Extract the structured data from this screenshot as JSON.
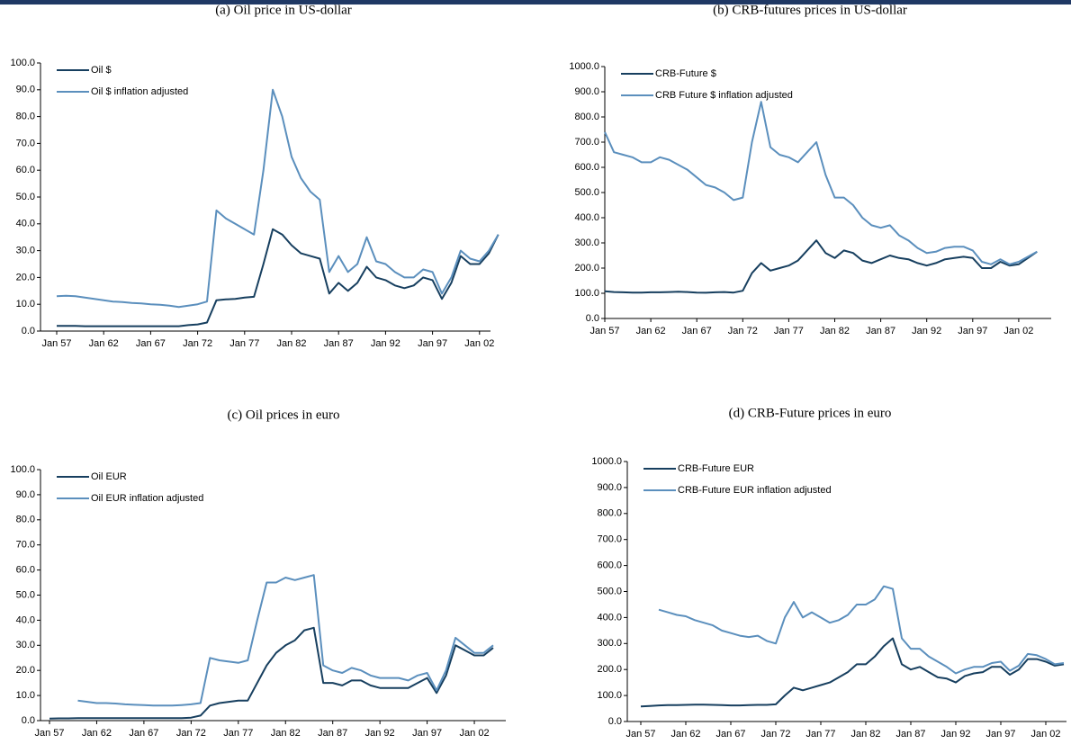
{
  "chart_data": [
    {
      "type": "line",
      "title": "(a) Oil price in US-dollar",
      "legend": "upper left",
      "categories": [
        "Jan 57",
        null,
        null,
        null,
        null,
        "Jan 62",
        null,
        null,
        null,
        null,
        "Jan 67",
        null,
        null,
        null,
        null,
        "Jan 72",
        null,
        null,
        null,
        null,
        "Jan 77",
        null,
        null,
        null,
        null,
        "Jan 82",
        null,
        null,
        null,
        null,
        "Jan 87",
        null,
        null,
        null,
        null,
        "Jan 92",
        null,
        null,
        null,
        null,
        "Jan 97",
        null,
        null,
        null,
        null,
        "Jan 02",
        null,
        null
      ],
      "ylim": [
        0,
        100
      ],
      "yticks": [
        {
          "value": 0,
          "label": "0.0"
        },
        {
          "value": 10,
          "label": "10.0"
        },
        {
          "value": 20,
          "label": "20.0"
        },
        {
          "value": 30,
          "label": "30.0"
        },
        {
          "value": 40,
          "label": "40.0"
        },
        {
          "value": 50,
          "label": "50.0"
        },
        {
          "value": 60,
          "label": "60.0"
        },
        {
          "value": 70,
          "label": "70.0"
        },
        {
          "value": 80,
          "label": "80.0"
        },
        {
          "value": 90,
          "label": "90.0"
        },
        {
          "value": 100,
          "label": "100.0"
        }
      ],
      "series": [
        {
          "name": "Oil $",
          "color": "#173f5f",
          "values": [
            1.9,
            1.9,
            1.9,
            1.8,
            1.8,
            1.8,
            1.8,
            1.8,
            1.8,
            1.8,
            1.8,
            1.8,
            1.8,
            1.8,
            2.2,
            2.5,
            3.2,
            11.5,
            11.8,
            12,
            12.5,
            12.8,
            25,
            38,
            36,
            32,
            29,
            28,
            27,
            14,
            18,
            15,
            18,
            24,
            20,
            19,
            17,
            16,
            17,
            20,
            19,
            12,
            18,
            28,
            25,
            25,
            29,
            36
          ]
        },
        {
          "name": "Oil $ inflation adjusted",
          "color": "#5b8fbd",
          "values": [
            13,
            13.2,
            13,
            12.5,
            12,
            11.5,
            11,
            10.8,
            10.5,
            10.3,
            10,
            9.8,
            9.5,
            9,
            9.5,
            10,
            11,
            45,
            42,
            40,
            38,
            36,
            60,
            90,
            80,
            65,
            57,
            52,
            49,
            22,
            28,
            22,
            25,
            35,
            26,
            25,
            22,
            20,
            20,
            23,
            22,
            14,
            20,
            30,
            27,
            26,
            30,
            36
          ]
        }
      ]
    },
    {
      "type": "line",
      "title": "(b) CRB-futures prices in US-dollar",
      "legend": "upper left",
      "categories": [
        "Jan 57",
        null,
        null,
        null,
        null,
        "Jan 62",
        null,
        null,
        null,
        null,
        "Jan 67",
        null,
        null,
        null,
        null,
        "Jan 72",
        null,
        null,
        null,
        null,
        "Jan 77",
        null,
        null,
        null,
        null,
        "Jan 82",
        null,
        null,
        null,
        null,
        "Jan 87",
        null,
        null,
        null,
        null,
        "Jan 92",
        null,
        null,
        null,
        null,
        "Jan 97",
        null,
        null,
        null,
        null,
        "Jan 02",
        null,
        null
      ],
      "ylim": [
        0,
        1000
      ],
      "yticks": [
        {
          "value": 0,
          "label": "0.0"
        },
        {
          "value": 100,
          "label": "100.0"
        },
        {
          "value": 200,
          "label": "200.0"
        },
        {
          "value": 300,
          "label": "300.0"
        },
        {
          "value": 400,
          "label": "400.0"
        },
        {
          "value": 500,
          "label": "500.0"
        },
        {
          "value": 600,
          "label": "600.0"
        },
        {
          "value": 700,
          "label": "700.0"
        },
        {
          "value": 800,
          "label": "800.0"
        },
        {
          "value": 900,
          "label": "900.0"
        },
        {
          "value": 1000,
          "label": "1000.0"
        }
      ],
      "series": [
        {
          "name": "CRB-Future $",
          "color": "#173f5f",
          "values": [
            108,
            105,
            104,
            103,
            103,
            104,
            104,
            105,
            106,
            105,
            103,
            102,
            104,
            105,
            103,
            110,
            180,
            220,
            190,
            200,
            210,
            230,
            270,
            310,
            260,
            240,
            270,
            260,
            230,
            220,
            235,
            250,
            240,
            235,
            220,
            210,
            220,
            235,
            240,
            245,
            240,
            200,
            200,
            225,
            210,
            215,
            240,
            265
          ]
        },
        {
          "name": "CRB Future $ inflation adjusted",
          "color": "#5b8fbd",
          "values": [
            740,
            660,
            650,
            640,
            620,
            620,
            640,
            630,
            610,
            590,
            560,
            530,
            520,
            500,
            470,
            480,
            700,
            860,
            680,
            650,
            640,
            620,
            660,
            700,
            570,
            480,
            480,
            450,
            400,
            370,
            360,
            370,
            330,
            310,
            280,
            260,
            265,
            280,
            285,
            285,
            270,
            225,
            215,
            235,
            215,
            225,
            245,
            265
          ]
        }
      ]
    },
    {
      "type": "line",
      "title": "(c) Oil prices in euro",
      "legend": "upper left",
      "categories": [
        "Jan 57",
        null,
        null,
        null,
        null,
        "Jan 62",
        null,
        null,
        null,
        null,
        "Jan 67",
        null,
        null,
        null,
        null,
        "Jan 72",
        null,
        null,
        null,
        null,
        "Jan 77",
        null,
        null,
        null,
        null,
        "Jan 82",
        null,
        null,
        null,
        null,
        "Jan 87",
        null,
        null,
        null,
        null,
        "Jan 92",
        null,
        null,
        null,
        null,
        "Jan 97",
        null,
        null,
        null,
        null,
        "Jan 02",
        null,
        null
      ],
      "ylim": [
        0,
        100
      ],
      "yticks": [
        {
          "value": 0,
          "label": "0.0"
        },
        {
          "value": 10,
          "label": "10.0"
        },
        {
          "value": 20,
          "label": "20.0"
        },
        {
          "value": 30,
          "label": "30.0"
        },
        {
          "value": 40,
          "label": "40.0"
        },
        {
          "value": 50,
          "label": "50.0"
        },
        {
          "value": 60,
          "label": "60.0"
        },
        {
          "value": 70,
          "label": "70.0"
        },
        {
          "value": 80,
          "label": "80.0"
        },
        {
          "value": 90,
          "label": "90.0"
        },
        {
          "value": 100,
          "label": "100.0"
        }
      ],
      "series": [
        {
          "name": "Oil EUR",
          "color": "#173f5f",
          "values": [
            0.8,
            0.9,
            0.9,
            1,
            1,
            1,
            1,
            1,
            1,
            1,
            1,
            1,
            1,
            1,
            1,
            1.2,
            2,
            6,
            7,
            7.5,
            8,
            8,
            15,
            22,
            27,
            30,
            32,
            36,
            37,
            15,
            15,
            14,
            16,
            16,
            14,
            13,
            13,
            13,
            13,
            15,
            17,
            11,
            18,
            30,
            28,
            26,
            26,
            29
          ]
        },
        {
          "name": "Oil EUR inflation adjusted",
          "color": "#5b8fbd",
          "values": [
            null,
            null,
            null,
            8,
            7.5,
            7,
            7,
            6.8,
            6.5,
            6.3,
            6.2,
            6,
            6,
            6,
            6.2,
            6.5,
            7,
            25,
            24,
            23.5,
            23,
            24,
            40,
            55,
            55,
            57,
            56,
            57,
            58,
            22,
            20,
            19,
            21,
            20,
            18,
            17,
            17,
            17,
            16,
            18,
            19,
            12,
            20,
            33,
            30,
            27,
            27,
            30
          ]
        }
      ]
    },
    {
      "type": "line",
      "title": "(d) CRB-Future prices in euro",
      "legend": "upper left",
      "categories": [
        "Jan 57",
        null,
        null,
        null,
        null,
        "Jan 62",
        null,
        null,
        null,
        null,
        "Jan 67",
        null,
        null,
        null,
        null,
        "Jan 72",
        null,
        null,
        null,
        null,
        "Jan 77",
        null,
        null,
        null,
        null,
        "Jan 82",
        null,
        null,
        null,
        null,
        "Jan 87",
        null,
        null,
        null,
        null,
        "Jan 92",
        null,
        null,
        null,
        null,
        "Jan 97",
        null,
        null,
        null,
        null,
        "Jan 02",
        null,
        null
      ],
      "ylim": [
        0,
        1000
      ],
      "yticks": [
        {
          "value": 0,
          "label": "0.0"
        },
        {
          "value": 100,
          "label": "100.0"
        },
        {
          "value": 200,
          "label": "200.0"
        },
        {
          "value": 300,
          "label": "300.0"
        },
        {
          "value": 400,
          "label": "400.0"
        },
        {
          "value": 500,
          "label": "500.0"
        },
        {
          "value": 600,
          "label": "600.0"
        },
        {
          "value": 700,
          "label": "700.0"
        },
        {
          "value": 800,
          "label": "800.0"
        },
        {
          "value": 900,
          "label": "900.0"
        },
        {
          "value": 1000,
          "label": "1000.0"
        }
      ],
      "series": [
        {
          "name": "CRB-Future EUR",
          "color": "#173f5f",
          "values": [
            58,
            60,
            62,
            63,
            63,
            64,
            65,
            65,
            64,
            63,
            62,
            62,
            63,
            64,
            64,
            66,
            100,
            130,
            120,
            130,
            140,
            150,
            170,
            190,
            220,
            220,
            250,
            290,
            320,
            220,
            200,
            210,
            190,
            170,
            165,
            150,
            175,
            185,
            190,
            210,
            210,
            180,
            200,
            240,
            240,
            230,
            215,
            220
          ]
        },
        {
          "name": "CRB-Future EUR inflation adjusted",
          "color": "#5b8fbd",
          "values": [
            null,
            null,
            430,
            420,
            410,
            405,
            390,
            380,
            370,
            350,
            340,
            330,
            325,
            330,
            310,
            300,
            400,
            460,
            400,
            420,
            400,
            380,
            390,
            410,
            450,
            450,
            470,
            520,
            510,
            320,
            280,
            280,
            250,
            230,
            210,
            185,
            200,
            210,
            210,
            225,
            230,
            195,
            215,
            260,
            255,
            240,
            220,
            225
          ]
        }
      ]
    }
  ]
}
